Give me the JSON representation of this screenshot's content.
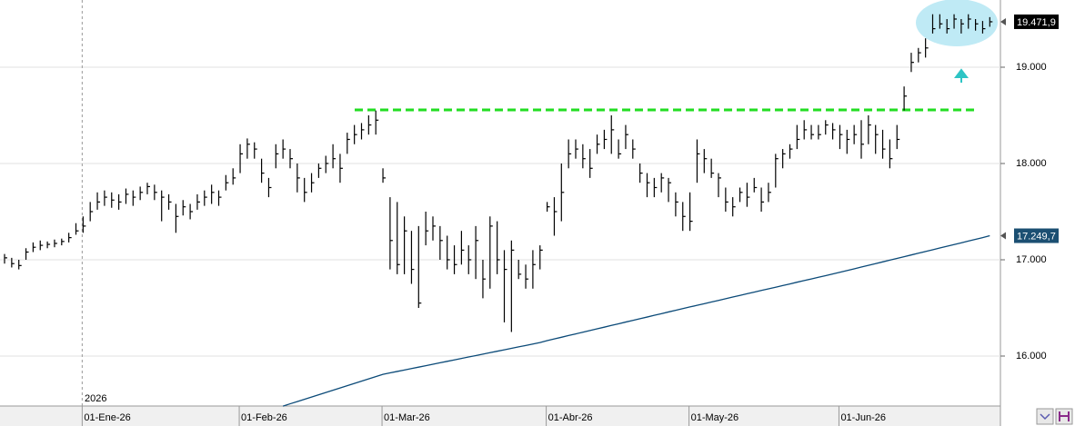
{
  "chart_data": {
    "type": "ohlc",
    "categories": [
      null,
      null,
      null,
      null,
      null,
      null,
      null,
      null,
      null,
      null,
      null,
      "01-Ene-26",
      null,
      null,
      null,
      null,
      null,
      null,
      null,
      null,
      null,
      null,
      null,
      null,
      null,
      null,
      null,
      null,
      null,
      null,
      null,
      null,
      null,
      "01-Feb-26",
      null,
      null,
      null,
      null,
      null,
      null,
      null,
      null,
      null,
      null,
      null,
      null,
      null,
      null,
      null,
      null,
      null,
      null,
      null,
      "01-Mar-26",
      null,
      null,
      null,
      null,
      null,
      null,
      null,
      null,
      null,
      null,
      null,
      null,
      null,
      null,
      null,
      null,
      null,
      null,
      null,
      null,
      null,
      null,
      "01-Abr-26",
      null,
      null,
      null,
      null,
      null,
      null,
      null,
      null,
      null,
      null,
      null,
      null,
      null,
      null,
      null,
      null,
      null,
      null,
      null,
      "01-May-26",
      null,
      null,
      null,
      null,
      null,
      null,
      null,
      null,
      null,
      null,
      null,
      null,
      null,
      null,
      null,
      null,
      null,
      null,
      null,
      null,
      "01-Jun-26",
      null,
      null,
      null,
      null,
      null,
      null,
      null,
      null,
      null,
      null,
      null,
      null,
      null,
      null,
      null,
      null,
      null,
      null,
      null,
      null,
      null
    ],
    "high": [
      17060,
      17020,
      17000,
      17120,
      17180,
      17200,
      17190,
      17210,
      17220,
      17280,
      17380,
      17450,
      17600,
      17700,
      17720,
      17700,
      17680,
      17740,
      17720,
      17760,
      17800,
      17780,
      17720,
      17680,
      17580,
      17620,
      17580,
      17680,
      17720,
      17780,
      17720,
      17880,
      17950,
      18200,
      18260,
      18220,
      18050,
      17850,
      18200,
      18250,
      18150,
      18000,
      17850,
      17900,
      18000,
      18080,
      18200,
      18100,
      18320,
      18400,
      18420,
      18500,
      18550,
      17950,
      17650,
      17600,
      17450,
      17300,
      17350,
      17500,
      17450,
      17350,
      17250,
      17150,
      17300,
      17150,
      17350,
      17000,
      17450,
      17400,
      17100,
      17200,
      17000,
      16950,
      17100,
      17150,
      17600,
      17650,
      18000,
      18250,
      18250,
      18200,
      18150,
      18300,
      18350,
      18500,
      18250,
      18400,
      18250,
      18000,
      17900,
      17850,
      17900,
      17850,
      17700,
      17600,
      17700,
      18250,
      18150,
      18050,
      17900,
      17750,
      17650,
      17750,
      17800,
      17850,
      17750,
      17800,
      18100,
      18150,
      18200,
      18400,
      18450,
      18400,
      18400,
      18450,
      18420,
      18400,
      18350,
      18400,
      18450,
      18500,
      18400,
      18350,
      18250,
      18400,
      18800,
      19150,
      19200,
      19300,
      19550,
      19550,
      19500,
      19550,
      19500,
      19550,
      19500,
      19480,
      19520
    ],
    "low": [
      16960,
      16920,
      16900,
      17000,
      17080,
      17100,
      17120,
      17130,
      17150,
      17180,
      17260,
      17280,
      17400,
      17520,
      17560,
      17540,
      17520,
      17580,
      17560,
      17620,
      17680,
      17620,
      17400,
      17520,
      17280,
      17460,
      17420,
      17520,
      17560,
      17580,
      17560,
      17720,
      17780,
      17900,
      18050,
      18050,
      17800,
      17650,
      17950,
      18050,
      17950,
      17700,
      17600,
      17700,
      17850,
      17900,
      17950,
      17800,
      18100,
      18200,
      18250,
      18300,
      18300,
      17800,
      16900,
      16850,
      16850,
      16750,
      16500,
      17150,
      17200,
      17000,
      16900,
      16850,
      16950,
      16850,
      16800,
      16600,
      16700,
      16850,
      16350,
      16250,
      16800,
      16700,
      16700,
      16900,
      17500,
      17250,
      17400,
      17950,
      18050,
      17950,
      17850,
      18100,
      18150,
      18100,
      18050,
      18150,
      18050,
      17800,
      17650,
      17650,
      17700,
      17600,
      17450,
      17300,
      17300,
      17800,
      17900,
      17850,
      17650,
      17500,
      17450,
      17600,
      17550,
      17700,
      17500,
      17600,
      17750,
      17950,
      18050,
      18150,
      18250,
      18250,
      18250,
      18300,
      18250,
      18150,
      18100,
      18200,
      18050,
      18200,
      18100,
      18050,
      17950,
      18150,
      18550,
      18950,
      19050,
      19100,
      19350,
      19400,
      19350,
      19400,
      19350,
      19400,
      19380,
      19350,
      19420
    ],
    "close": [
      17020,
      16960,
      16940,
      17080,
      17130,
      17150,
      17160,
      17170,
      17190,
      17230,
      17300,
      17350,
      17500,
      17600,
      17650,
      17620,
      17600,
      17680,
      17650,
      17700,
      17760,
      17700,
      17650,
      17600,
      17450,
      17550,
      17500,
      17600,
      17650,
      17700,
      17650,
      17800,
      17850,
      18100,
      18200,
      18150,
      17900,
      17750,
      18100,
      18150,
      18050,
      17850,
      17700,
      17800,
      17950,
      18000,
      18050,
      17950,
      18250,
      18300,
      18350,
      18400,
      18450,
      17850,
      17200,
      16950,
      17300,
      16900,
      16550,
      17300,
      17350,
      17200,
      17000,
      16950,
      17100,
      17000,
      17200,
      16800,
      17350,
      17000,
      16900,
      17100,
      16850,
      16800,
      16950,
      17100,
      17550,
      17500,
      17700,
      18100,
      18150,
      18050,
      17950,
      18200,
      18250,
      18350,
      18100,
      18300,
      18150,
      17900,
      17800,
      17750,
      17850,
      17800,
      17600,
      17450,
      17400,
      18100,
      18050,
      17900,
      17850,
      17600,
      17550,
      17700,
      17650,
      17750,
      17600,
      17700,
      18050,
      18100,
      18150,
      18250,
      18350,
      18300,
      18300,
      18400,
      18350,
      18300,
      18250,
      18300,
      18200,
      18400,
      18300,
      18150,
      18050,
      18250,
      18700,
      19050,
      19150,
      19200,
      19400,
      19450,
      19400,
      19500,
      19450,
      19500,
      19450,
      19400,
      19471.9
    ],
    "color": "#000000",
    "line": {
      "color": "#0b4a78",
      "values": [
        null,
        null,
        null,
        null,
        null,
        null,
        null,
        null,
        null,
        null,
        null,
        null,
        null,
        null,
        null,
        null,
        null,
        null,
        null,
        null,
        null,
        null,
        null,
        null,
        null,
        null,
        null,
        null,
        null,
        null,
        null,
        null,
        null,
        null,
        null,
        null,
        null,
        null,
        null,
        15480,
        15504,
        15527,
        15551,
        15574,
        15598,
        15621,
        15645,
        15669,
        15692,
        15716,
        15739,
        15763,
        15786,
        15810,
        15825,
        15840,
        15855,
        15870,
        15885,
        15900,
        15915,
        15930,
        15945,
        15960,
        15975,
        15990,
        16005,
        16020,
        16035,
        16050,
        16065,
        16080,
        16095,
        16110,
        16125,
        16140,
        16160,
        16178,
        16195,
        16213,
        16230,
        16248,
        16265,
        16283,
        16300,
        16318,
        16335,
        16353,
        16370,
        16388,
        16405,
        16423,
        16440,
        16458,
        16475,
        16493,
        16510,
        16527,
        16544,
        16561,
        16578,
        16595,
        16613,
        16630,
        16647,
        16664,
        16681,
        16698,
        16715,
        16732,
        16749,
        16767,
        16784,
        16801,
        16818,
        16835,
        16852,
        16870,
        16888,
        16906,
        16924,
        16942,
        16960,
        16978,
        16996,
        17014,
        17032,
        17050,
        17068,
        17086,
        17104,
        17122,
        17140,
        17158,
        17176,
        17194,
        17212,
        17230,
        17249.7
      ]
    },
    "reference_line": {
      "value": 18557,
      "color": "#22dd22"
    },
    "price_tags": [
      {
        "value": 19471.9,
        "label": "19.471,9",
        "color": "#000000"
      },
      {
        "value": 17249.7,
        "label": "17.249,7",
        "color": "#1b4f72"
      }
    ],
    "year_label": "2026",
    "ylim": [
      15481,
      19698
    ],
    "yticks": [
      {
        "value": 16000,
        "label": "16.000"
      },
      {
        "value": 17000,
        "label": "17.000"
      },
      {
        "value": 18000,
        "label": "18.000"
      },
      {
        "value": 19000,
        "label": "19.000"
      }
    ],
    "grid": true
  }
}
